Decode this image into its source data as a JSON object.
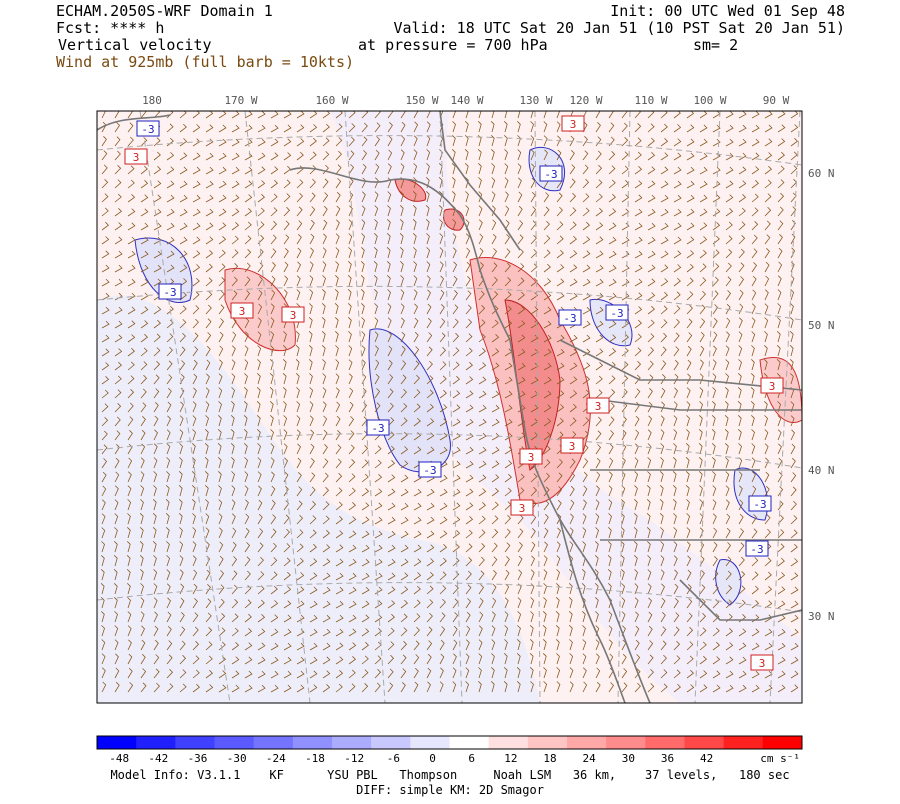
{
  "header": {
    "model": "ECHAM.2050S-WRF Domain 1",
    "forecast": "Fcst: **** h",
    "field": "Vertical velocity",
    "wind": "Wind at 925mb (full barb = 10kts)",
    "init": "Init: 00 UTC Wed 01 Sep 48",
    "valid": "Valid: 18 UTC Sat 20 Jan 51 (10 PST Sat 20 Jan 51)",
    "pressure": "at pressure =  700 hPa",
    "smoothing": "sm= 2"
  },
  "map": {
    "longitudes": [
      "180",
      "170 W",
      "160 W",
      "150 W",
      "140 W",
      "130 W",
      "120 W",
      "110 W",
      "100 W",
      "90 W"
    ],
    "latitudes": [
      "60 N",
      "50 N",
      "40 N",
      "30 N"
    ],
    "contour_labels": [
      "-3",
      "3",
      "-3",
      "3",
      "3",
      "-3",
      "-3",
      "-3",
      "3",
      "3",
      "3",
      "3",
      "-3",
      "-3",
      "-3",
      "3",
      "3",
      "-3",
      "3"
    ]
  },
  "colorbar": {
    "ticks": [
      "-48",
      "-42",
      "-36",
      "-30",
      "-24",
      "-18",
      "-12",
      "-6",
      "0",
      "6",
      "12",
      "18",
      "24",
      "30",
      "36",
      "42"
    ],
    "colors": [
      "#0000ff",
      "#2020ff",
      "#4040ff",
      "#5a5aff",
      "#7474ff",
      "#9090ff",
      "#acacff",
      "#c8c8ff",
      "#e6e6ff",
      "#ffffff",
      "#ffe0e0",
      "#ffc4c4",
      "#ffa8a8",
      "#ff8c8c",
      "#ff6a6a",
      "#ff4848",
      "#ff2020",
      "#ff0000"
    ],
    "unit": "cm s⁻¹"
  },
  "footer": {
    "model_info": "Model Info: V3.1.1    KF      YSU PBL   Thompson     Noah LSM   36 km,    37 levels,   180 sec",
    "diff": "DIFF: simple KM: 2D Smagor"
  }
}
